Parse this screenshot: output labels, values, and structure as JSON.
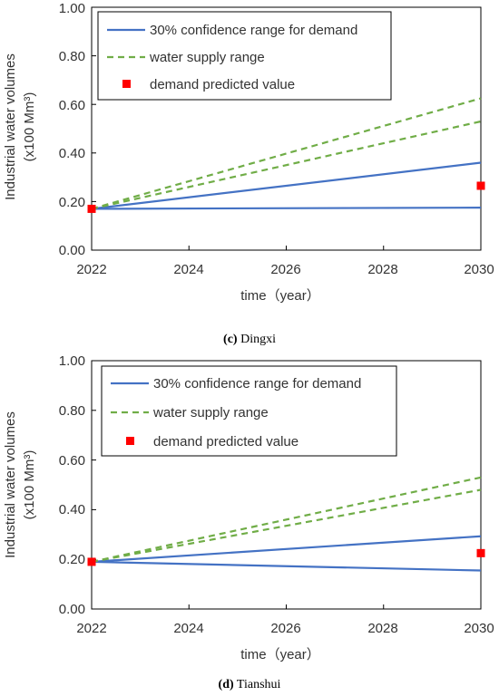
{
  "chart_data": [
    {
      "type": "line",
      "caption_letter": "(c)",
      "caption_name": "Dingxi",
      "ylabel_line1": "Industrial water volumes",
      "ylabel_line2": "(x100 Mm³)",
      "xlabel": "time（year）",
      "x_ticks": [
        "2022",
        "2024",
        "2026",
        "2028",
        "2030"
      ],
      "y_ticks": [
        "0.00",
        "0.20",
        "0.40",
        "0.60",
        "0.80",
        "1.00"
      ],
      "xlim": [
        2022,
        2030
      ],
      "ylim": [
        0,
        1.0
      ],
      "legend_position": "top-left",
      "grid": false,
      "legend": {
        "confidence": "30% confidence range for demand",
        "supply": "water supply range",
        "predicted": "demand predicted value"
      },
      "series": [
        {
          "name": "30% confidence range for demand",
          "style": "solid",
          "color": "#4472C4",
          "lines": [
            {
              "x": [
                2022,
                2030
              ],
              "y": [
                0.17,
                0.36
              ]
            },
            {
              "x": [
                2022,
                2030
              ],
              "y": [
                0.17,
                0.175
              ]
            }
          ]
        },
        {
          "name": "water supply range",
          "style": "dashed",
          "color": "#70AD47",
          "lines": [
            {
              "x": [
                2022,
                2030
              ],
              "y": [
                0.17,
                0.625
              ]
            },
            {
              "x": [
                2022,
                2030
              ],
              "y": [
                0.17,
                0.53
              ]
            }
          ]
        },
        {
          "name": "demand predicted value",
          "style": "marker",
          "color": "#FF0000",
          "points": [
            {
              "x": 2022,
              "y": 0.17
            },
            {
              "x": 2030,
              "y": 0.265
            }
          ]
        }
      ]
    },
    {
      "type": "line",
      "caption_letter": "(d)",
      "caption_name": "Tianshui",
      "ylabel_line1": "Industrial water volumes",
      "ylabel_line2": "(x100 Mm³)",
      "xlabel": "time（year）",
      "x_ticks": [
        "2022",
        "2024",
        "2026",
        "2028",
        "2030"
      ],
      "y_ticks": [
        "0.00",
        "0.20",
        "0.40",
        "0.60",
        "0.80",
        "1.00"
      ],
      "xlim": [
        2022,
        2030
      ],
      "ylim": [
        0,
        1.0
      ],
      "legend_position": "top-left",
      "grid": false,
      "legend": {
        "confidence": "30% confidence range for demand",
        "supply": "water supply range",
        "predicted": "demand predicted value"
      },
      "series": [
        {
          "name": "30% confidence range for demand",
          "style": "solid",
          "color": "#4472C4",
          "lines": [
            {
              "x": [
                2022,
                2030
              ],
              "y": [
                0.19,
                0.293
              ]
            },
            {
              "x": [
                2022,
                2030
              ],
              "y": [
                0.19,
                0.155
              ]
            }
          ]
        },
        {
          "name": "water supply range",
          "style": "dashed",
          "color": "#70AD47",
          "lines": [
            {
              "x": [
                2022,
                2030
              ],
              "y": [
                0.19,
                0.53
              ]
            },
            {
              "x": [
                2022,
                2030
              ],
              "y": [
                0.19,
                0.48
              ]
            }
          ]
        },
        {
          "name": "demand predicted value",
          "style": "marker",
          "color": "#FF0000",
          "points": [
            {
              "x": 2022,
              "y": 0.19
            },
            {
              "x": 2030,
              "y": 0.225
            }
          ]
        }
      ]
    }
  ]
}
